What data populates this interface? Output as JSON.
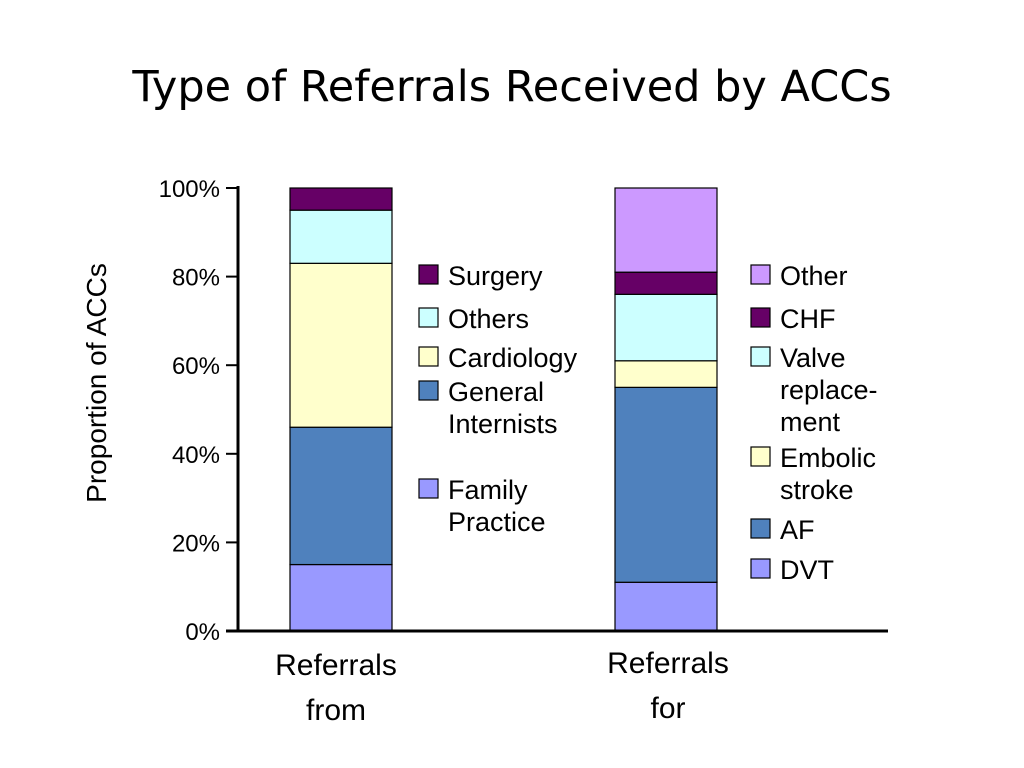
{
  "slide": {
    "title": "Type of Referrals Received by ACCs"
  },
  "chart_data": {
    "type": "bar",
    "stacked": true,
    "title": "Type of Referrals Received by ACCs",
    "ylabel": "Proportion of ACCs",
    "xlabel": "",
    "ylim": [
      0,
      100
    ],
    "yticks": [
      "0%",
      "20%",
      "40%",
      "60%",
      "80%",
      "100%"
    ],
    "categories": [
      [
        "Referrals",
        "from"
      ],
      [
        "Referrals",
        "for"
      ]
    ],
    "groups": [
      {
        "category_index": 0,
        "segments": [
          {
            "name": "Family Practice",
            "value": 15,
            "color": "#9999ff"
          },
          {
            "name": "General Internists",
            "value": 31,
            "color": "#4f81bd"
          },
          {
            "name": "Cardiology",
            "value": 37,
            "color": "#ffffcc"
          },
          {
            "name": "Others",
            "value": 12,
            "color": "#ccffff"
          },
          {
            "name": "Surgery",
            "value": 5,
            "color": "#660066"
          }
        ],
        "legend": [
          {
            "lines": [
              "Surgery"
            ],
            "color": "#660066"
          },
          {
            "lines": [
              "Others"
            ],
            "color": "#ccffff"
          },
          {
            "lines": [
              "Cardiology"
            ],
            "color": "#ffffcc"
          },
          {
            "lines": [
              "General",
              "Internists"
            ],
            "color": "#4f81bd"
          },
          {
            "lines": [
              "Family",
              "Practice"
            ],
            "color": "#9999ff"
          }
        ]
      },
      {
        "category_index": 1,
        "segments": [
          {
            "name": "DVT",
            "value": 11,
            "color": "#9999ff"
          },
          {
            "name": "AF",
            "value": 44,
            "color": "#4f81bd"
          },
          {
            "name": "Embolic stroke",
            "value": 6,
            "color": "#ffffcc"
          },
          {
            "name": "Valve replacement",
            "value": 15,
            "color": "#ccffff"
          },
          {
            "name": "CHF",
            "value": 5,
            "color": "#660066"
          },
          {
            "name": "Other",
            "value": 19,
            "color": "#cc99ff"
          }
        ],
        "legend": [
          {
            "lines": [
              "Other"
            ],
            "color": "#cc99ff"
          },
          {
            "lines": [
              "CHF"
            ],
            "color": "#660066"
          },
          {
            "lines": [
              "Valve",
              "replace-",
              "ment"
            ],
            "color": "#ccffff"
          },
          {
            "lines": [
              "Embolic",
              "stroke"
            ],
            "color": "#ffffcc"
          },
          {
            "lines": [
              "AF"
            ],
            "color": "#4f81bd"
          },
          {
            "lines": [
              "DVT"
            ],
            "color": "#9999ff"
          }
        ]
      }
    ],
    "grid": false,
    "legend_placement": "right of each bar"
  }
}
